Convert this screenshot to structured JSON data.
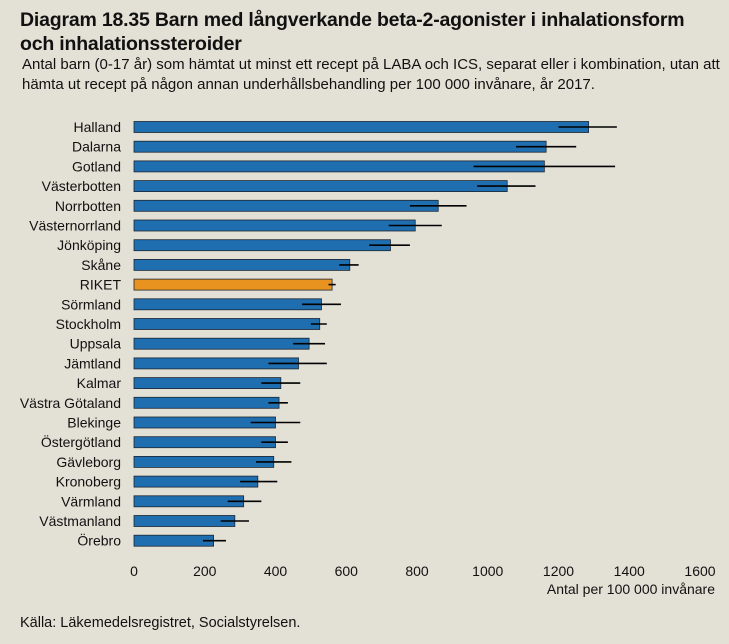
{
  "title": "Diagram 18.35 Barn med långverkande beta-2-agonister i inhalationsform och inhalationssteroider",
  "subtitle": "Antal barn (0-17 år) som hämtat ut minst ett recept på LABA och ICS, separat eller i kombination, utan att hämta ut recept på någon annan underhållsbehandling per 100 000 invånare, år 2017.",
  "source": "Källa: Läkemedelsregistret, Socialstyrelsen.",
  "colors": {
    "bar": "#1f6eb0",
    "highlight": "#e8921f",
    "background": "#e3e0d5",
    "error": "#000000"
  },
  "chart_data": {
    "type": "bar",
    "orientation": "horizontal",
    "xlabel": "Antal per 100 000 invånare",
    "xlim": [
      0,
      1600
    ],
    "xticks": [
      0,
      200,
      400,
      600,
      800,
      1000,
      1200,
      1400,
      1600
    ],
    "highlight": "RIKET",
    "categories": [
      "Halland",
      "Dalarna",
      "Gotland",
      "Västerbotten",
      "Norrbotten",
      "Västernorrland",
      "Jönköping",
      "Skåne",
      "RIKET",
      "Sörmland",
      "Stockholm",
      "Uppsala",
      "Jämtland",
      "Kalmar",
      "Västra Götaland",
      "Blekinge",
      "Östergötland",
      "Gävleborg",
      "Kronoberg",
      "Värmland",
      "Västmanland",
      "Örebro"
    ],
    "values": [
      1285,
      1165,
      1160,
      1055,
      860,
      795,
      725,
      610,
      560,
      530,
      525,
      495,
      465,
      415,
      410,
      400,
      400,
      395,
      350,
      310,
      285,
      225
    ],
    "error_low": [
      1200,
      1080,
      960,
      970,
      780,
      720,
      665,
      580,
      550,
      475,
      500,
      450,
      380,
      360,
      380,
      330,
      360,
      345,
      300,
      265,
      245,
      195
    ],
    "error_high": [
      1365,
      1250,
      1360,
      1135,
      940,
      870,
      780,
      635,
      570,
      585,
      545,
      540,
      545,
      470,
      435,
      470,
      435,
      445,
      405,
      360,
      325,
      260
    ]
  }
}
